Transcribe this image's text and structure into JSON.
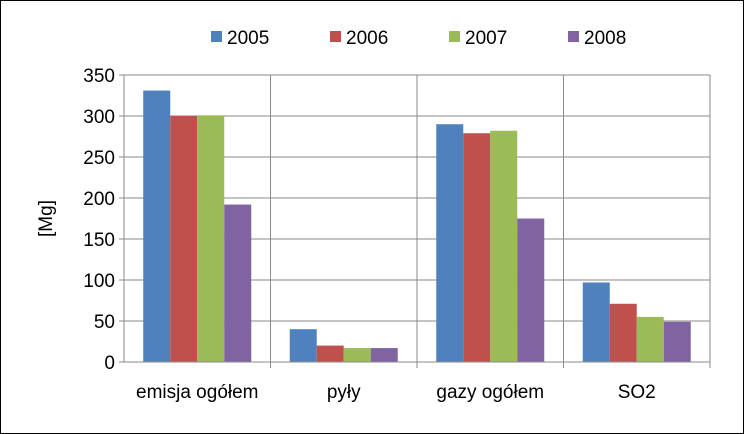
{
  "chart_data": {
    "type": "bar",
    "title": "",
    "xlabel": "",
    "ylabel": "[Mg]",
    "ylim": [
      0,
      350
    ],
    "yticks": [
      0,
      50,
      100,
      150,
      200,
      250,
      300,
      350
    ],
    "categories": [
      "emisja ogółem",
      "pyły",
      "gazy ogółem",
      "SO2"
    ],
    "series": [
      {
        "name": "2005",
        "color": "#4F81BD",
        "values": [
          331,
          40,
          290,
          97
        ]
      },
      {
        "name": "2006",
        "color": "#C0504D",
        "values": [
          300,
          20,
          279,
          71
        ]
      },
      {
        "name": "2007",
        "color": "#9BBB59",
        "values": [
          300,
          17,
          282,
          55
        ]
      },
      {
        "name": "2008",
        "color": "#8064A2",
        "values": [
          192,
          17,
          175,
          49
        ]
      }
    ],
    "grid": true,
    "legend": "top"
  }
}
